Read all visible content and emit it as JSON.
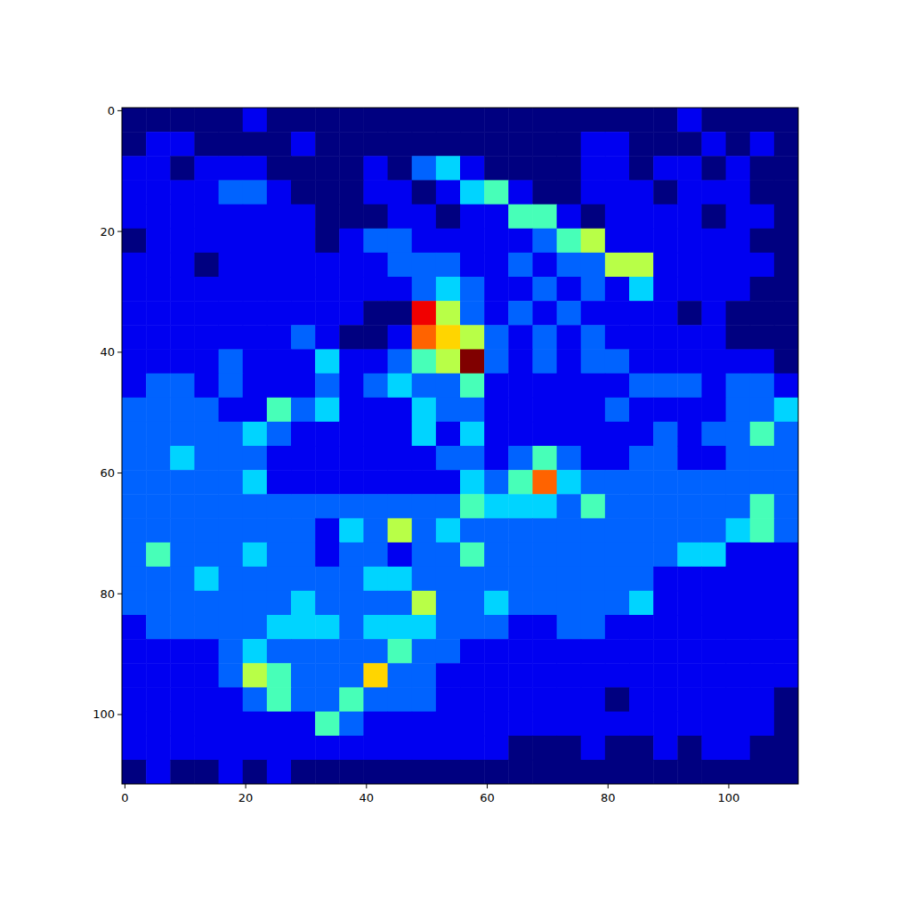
{
  "chart_data": {
    "type": "heatmap",
    "xlim": [
      -0.5,
      111.5
    ],
    "ylim": [
      111.5,
      -0.5
    ],
    "xticks": [
      0,
      20,
      40,
      60,
      80,
      100
    ],
    "yticks": [
      0,
      20,
      40,
      60,
      80,
      100
    ],
    "vlim": [
      1,
      10
    ],
    "cells": [
      [
        1,
        1,
        1,
        1,
        1,
        2,
        1,
        1,
        1,
        1,
        1,
        1,
        1,
        1,
        1,
        1,
        1,
        1,
        1,
        1,
        1,
        1,
        1,
        2,
        1,
        1,
        1,
        1
      ],
      [
        1,
        2,
        2,
        1,
        1,
        1,
        1,
        2,
        1,
        1,
        1,
        1,
        1,
        1,
        1,
        1,
        1,
        1,
        1,
        2,
        2,
        1,
        1,
        1,
        2,
        1,
        2,
        1
      ],
      [
        2,
        2,
        1,
        2,
        2,
        2,
        1,
        1,
        1,
        1,
        2,
        1,
        3,
        4,
        2,
        1,
        1,
        1,
        1,
        2,
        2,
        1,
        2,
        2,
        1,
        2,
        1,
        1
      ],
      [
        2,
        2,
        2,
        2,
        3,
        3,
        2,
        1,
        1,
        1,
        2,
        2,
        1,
        2,
        4,
        5,
        2,
        1,
        1,
        2,
        2,
        2,
        1,
        2,
        2,
        2,
        1,
        1
      ],
      [
        2,
        2,
        2,
        2,
        2,
        2,
        2,
        2,
        1,
        1,
        1,
        2,
        2,
        1,
        2,
        2,
        5,
        5,
        2,
        1,
        2,
        2,
        2,
        2,
        1,
        2,
        2,
        1
      ],
      [
        1,
        2,
        2,
        2,
        2,
        2,
        2,
        2,
        1,
        2,
        3,
        3,
        2,
        2,
        2,
        2,
        2,
        3,
        5,
        6,
        2,
        2,
        2,
        2,
        2,
        2,
        1,
        1
      ],
      [
        2,
        2,
        2,
        1,
        2,
        2,
        2,
        2,
        2,
        2,
        2,
        3,
        3,
        3,
        2,
        2,
        3,
        2,
        3,
        3,
        6,
        6,
        2,
        2,
        2,
        2,
        2,
        1
      ],
      [
        2,
        2,
        2,
        2,
        2,
        2,
        2,
        2,
        2,
        2,
        2,
        2,
        3,
        4,
        3,
        2,
        2,
        3,
        2,
        3,
        2,
        4,
        2,
        2,
        2,
        2,
        1,
        1
      ],
      [
        2,
        2,
        2,
        2,
        2,
        2,
        2,
        2,
        2,
        2,
        1,
        1,
        9,
        6,
        3,
        2,
        3,
        2,
        3,
        2,
        2,
        2,
        2,
        1,
        2,
        1,
        1,
        1
      ],
      [
        2,
        2,
        2,
        2,
        2,
        2,
        2,
        3,
        2,
        1,
        1,
        2,
        8,
        7,
        6,
        3,
        2,
        3,
        2,
        3,
        2,
        2,
        2,
        2,
        2,
        1,
        1,
        1
      ],
      [
        2,
        2,
        2,
        2,
        3,
        2,
        2,
        2,
        4,
        2,
        2,
        3,
        5,
        6,
        10,
        3,
        2,
        3,
        2,
        3,
        3,
        2,
        2,
        2,
        2,
        2,
        2,
        1
      ],
      [
        2,
        3,
        3,
        2,
        3,
        2,
        2,
        2,
        3,
        2,
        3,
        4,
        3,
        3,
        5,
        2,
        2,
        2,
        2,
        2,
        2,
        3,
        3,
        3,
        2,
        3,
        3,
        2
      ],
      [
        3,
        3,
        3,
        3,
        2,
        2,
        5,
        3,
        4,
        2,
        2,
        2,
        4,
        3,
        3,
        2,
        2,
        2,
        2,
        2,
        3,
        2,
        2,
        2,
        2,
        3,
        3,
        4
      ],
      [
        3,
        3,
        3,
        3,
        3,
        4,
        3,
        2,
        2,
        2,
        2,
        2,
        4,
        2,
        4,
        2,
        2,
        2,
        2,
        2,
        2,
        2,
        3,
        2,
        3,
        3,
        5,
        3
      ],
      [
        3,
        3,
        4,
        3,
        3,
        3,
        2,
        2,
        2,
        2,
        2,
        2,
        2,
        3,
        3,
        2,
        3,
        5,
        3,
        2,
        2,
        3,
        3,
        2,
        2,
        3,
        3,
        3
      ],
      [
        3,
        3,
        3,
        3,
        3,
        4,
        2,
        2,
        2,
        2,
        2,
        2,
        2,
        2,
        4,
        3,
        5,
        8,
        4,
        3,
        3,
        3,
        3,
        3,
        3,
        3,
        3,
        3
      ],
      [
        3,
        3,
        3,
        3,
        3,
        3,
        3,
        3,
        3,
        3,
        3,
        3,
        3,
        3,
        5,
        4,
        4,
        4,
        3,
        5,
        3,
        3,
        3,
        3,
        3,
        3,
        5,
        3
      ],
      [
        3,
        3,
        3,
        3,
        3,
        3,
        3,
        3,
        2,
        4,
        3,
        6,
        3,
        4,
        3,
        3,
        3,
        3,
        3,
        3,
        3,
        3,
        3,
        3,
        3,
        4,
        5,
        3
      ],
      [
        3,
        5,
        3,
        3,
        3,
        4,
        3,
        3,
        2,
        3,
        3,
        2,
        3,
        3,
        5,
        3,
        3,
        3,
        3,
        3,
        3,
        3,
        3,
        4,
        4,
        2,
        2,
        2
      ],
      [
        3,
        3,
        3,
        4,
        3,
        3,
        3,
        3,
        3,
        3,
        4,
        4,
        3,
        3,
        3,
        3,
        3,
        3,
        3,
        3,
        3,
        3,
        2,
        2,
        2,
        2,
        2,
        2
      ],
      [
        3,
        3,
        3,
        3,
        3,
        3,
        3,
        4,
        3,
        3,
        3,
        3,
        6,
        3,
        3,
        4,
        3,
        3,
        3,
        3,
        3,
        4,
        2,
        2,
        2,
        2,
        2,
        2
      ],
      [
        2,
        3,
        3,
        3,
        3,
        3,
        4,
        4,
        4,
        3,
        4,
        4,
        4,
        3,
        3,
        3,
        2,
        2,
        3,
        3,
        2,
        2,
        2,
        2,
        2,
        2,
        2,
        2
      ],
      [
        2,
        2,
        2,
        2,
        3,
        4,
        3,
        3,
        3,
        3,
        3,
        5,
        3,
        3,
        2,
        2,
        2,
        2,
        2,
        2,
        2,
        2,
        2,
        2,
        2,
        2,
        2,
        2
      ],
      [
        2,
        2,
        2,
        2,
        3,
        6,
        5,
        3,
        3,
        3,
        7,
        3,
        3,
        2,
        2,
        2,
        2,
        2,
        2,
        2,
        2,
        2,
        2,
        2,
        2,
        2,
        2,
        2
      ],
      [
        2,
        2,
        2,
        2,
        2,
        3,
        5,
        3,
        3,
        5,
        3,
        3,
        3,
        2,
        2,
        2,
        2,
        2,
        2,
        2,
        1,
        2,
        2,
        2,
        2,
        2,
        2,
        1
      ],
      [
        2,
        2,
        2,
        2,
        2,
        2,
        2,
        2,
        5,
        3,
        2,
        2,
        2,
        2,
        2,
        2,
        2,
        2,
        2,
        2,
        2,
        2,
        2,
        2,
        2,
        2,
        2,
        1
      ],
      [
        2,
        2,
        2,
        2,
        2,
        2,
        2,
        2,
        2,
        2,
        2,
        2,
        2,
        2,
        2,
        2,
        1,
        1,
        1,
        2,
        1,
        1,
        2,
        1,
        2,
        2,
        1,
        1
      ],
      [
        1,
        2,
        1,
        1,
        2,
        1,
        2,
        1,
        1,
        1,
        1,
        1,
        1,
        1,
        1,
        1,
        1,
        1,
        1,
        1,
        1,
        1,
        1,
        1,
        1,
        1,
        1,
        1
      ]
    ]
  }
}
